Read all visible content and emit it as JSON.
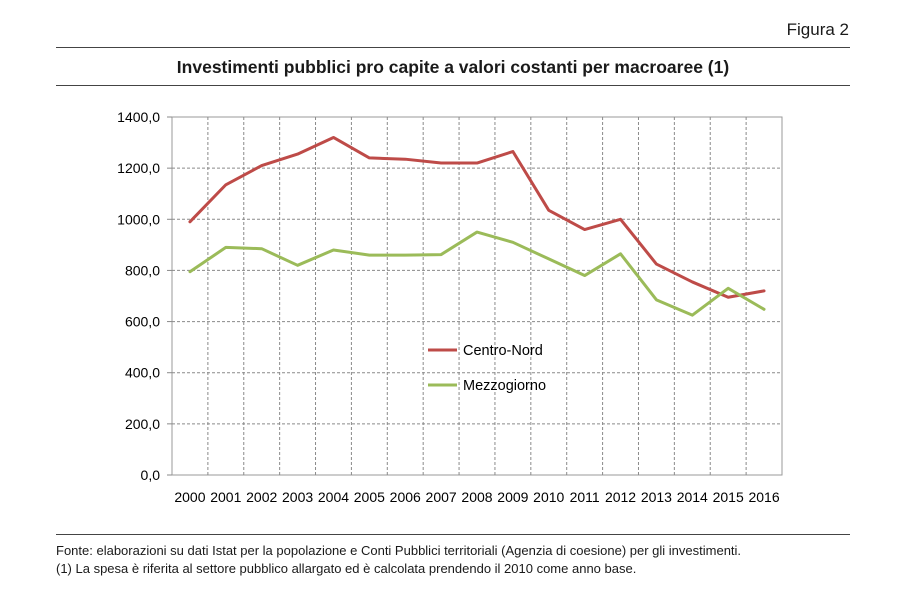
{
  "figure_label": "Figura 2",
  "title": "Investimenti pubblici pro capite a valori costanti per macroaree (1)",
  "source_line1": "Fonte: elaborazioni su dati Istat per la popolazione e Conti Pubblici territoriali (Agenzia di coesione) per gli investimenti.",
  "source_line2": "(1) La spesa è riferita al settore pubblico allargato ed è calcolata prendendo il 2010 come anno base.",
  "chart_data": {
    "type": "line",
    "title": "Investimenti pubblici pro capite a valori costanti per macroaree (1)",
    "xlabel": "",
    "ylabel": "",
    "categories": [
      "2000",
      "2001",
      "2002",
      "2003",
      "2004",
      "2005",
      "2006",
      "2007",
      "2008",
      "2009",
      "2010",
      "2011",
      "2012",
      "2013",
      "2014",
      "2015",
      "2016"
    ],
    "ylim": [
      0,
      1400
    ],
    "yticks": [
      0,
      200,
      400,
      600,
      800,
      1000,
      1200,
      1400
    ],
    "ytick_labels": [
      "0,0",
      "200,0",
      "400,0",
      "600,0",
      "800,0",
      "1000,0",
      "1200,0",
      "1400,0"
    ],
    "grid": true,
    "legend": "inside-center",
    "series": [
      {
        "name": "Centro-Nord",
        "color": "#be4b48",
        "values": [
          990,
          1135,
          1210,
          1255,
          1320,
          1240,
          1235,
          1220,
          1220,
          1265,
          1035,
          960,
          1000,
          825,
          755,
          695,
          720
        ]
      },
      {
        "name": "Mezzogiorno",
        "color": "#9bbb59",
        "values": [
          795,
          890,
          885,
          820,
          880,
          860,
          860,
          862,
          950,
          910,
          845,
          780,
          865,
          685,
          625,
          730,
          648
        ]
      }
    ]
  }
}
